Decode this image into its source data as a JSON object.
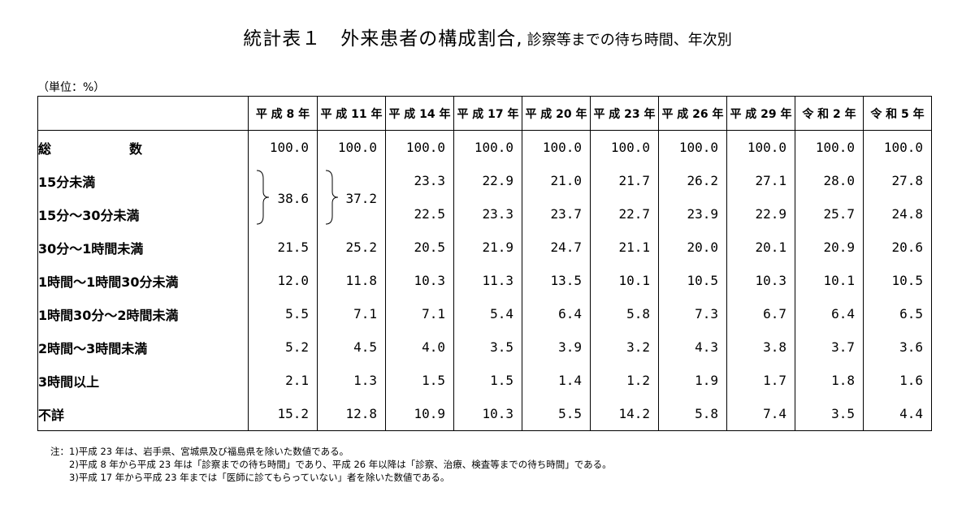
{
  "title": {
    "main": "統計表１　外来患者の構成割合,",
    "sub": "診察等までの待ち時間、年次別"
  },
  "unit": "（単位：%）",
  "columns": [
    "平 成 8 年",
    "平 成 11 年",
    "平 成 14 年",
    "平 成 17 年",
    "平 成 20 年",
    "平 成 23 年",
    "平 成 26 年",
    "平 成 29 年",
    "令 和 2 年",
    "令 和 5 年"
  ],
  "rows": {
    "total": {
      "label_a": "総",
      "label_b": "数",
      "values": [
        "100.0",
        "100.0",
        "100.0",
        "100.0",
        "100.0",
        "100.0",
        "100.0",
        "100.0",
        "100.0",
        "100.0"
      ]
    },
    "under15": {
      "label": "15分未満",
      "values": [
        "23.3",
        "22.9",
        "21.0",
        "21.7",
        "26.2",
        "27.1",
        "28.0",
        "27.8"
      ]
    },
    "m15_30": {
      "label": "15分～30分未満",
      "values": [
        "22.5",
        "23.3",
        "23.7",
        "22.7",
        "23.9",
        "22.9",
        "25.7",
        "24.8"
      ]
    },
    "merged": [
      "38.6",
      "37.2"
    ],
    "m30_60": {
      "label": "30分～1時間未満",
      "values": [
        "21.5",
        "25.2",
        "20.5",
        "21.9",
        "24.7",
        "21.1",
        "20.0",
        "20.1",
        "20.9",
        "20.6"
      ]
    },
    "h1_90": {
      "label": "1時間～1時間30分未満",
      "values": [
        "12.0",
        "11.8",
        "10.3",
        "11.3",
        "13.5",
        "10.1",
        "10.5",
        "10.3",
        "10.1",
        "10.5"
      ]
    },
    "h90_2": {
      "label": "1時間30分～2時間未満",
      "values": [
        "5.5",
        "7.1",
        "7.1",
        "5.4",
        "6.4",
        "5.8",
        "7.3",
        "6.7",
        "6.4",
        "6.5"
      ]
    },
    "h2_3": {
      "label": "2時間～3時間未満",
      "values": [
        "5.2",
        "4.5",
        "4.0",
        "3.5",
        "3.9",
        "3.2",
        "4.3",
        "3.8",
        "3.7",
        "3.6"
      ]
    },
    "h3plus": {
      "label": "3時間以上",
      "values": [
        "2.1",
        "1.3",
        "1.5",
        "1.5",
        "1.4",
        "1.2",
        "1.9",
        "1.7",
        "1.8",
        "1.6"
      ]
    },
    "unknown": {
      "label": "不詳",
      "values": [
        "15.2",
        "12.8",
        "10.9",
        "10.3",
        "5.5",
        "14.2",
        "5.8",
        "7.4",
        "3.5",
        "4.4"
      ]
    }
  },
  "notes": [
    "注：1)平成 23 年は、岩手県、宮城県及び福島県を除いた数値である。",
    "2)平成 8 年から平成 23 年は「診察までの待ち時間」であり、平成 26 年以降は「診察、治療、検査等までの待ち時間」である。",
    "3)平成 17 年から平成 23 年までは「医師に診てもらっていない」者を除いた数値である。"
  ]
}
